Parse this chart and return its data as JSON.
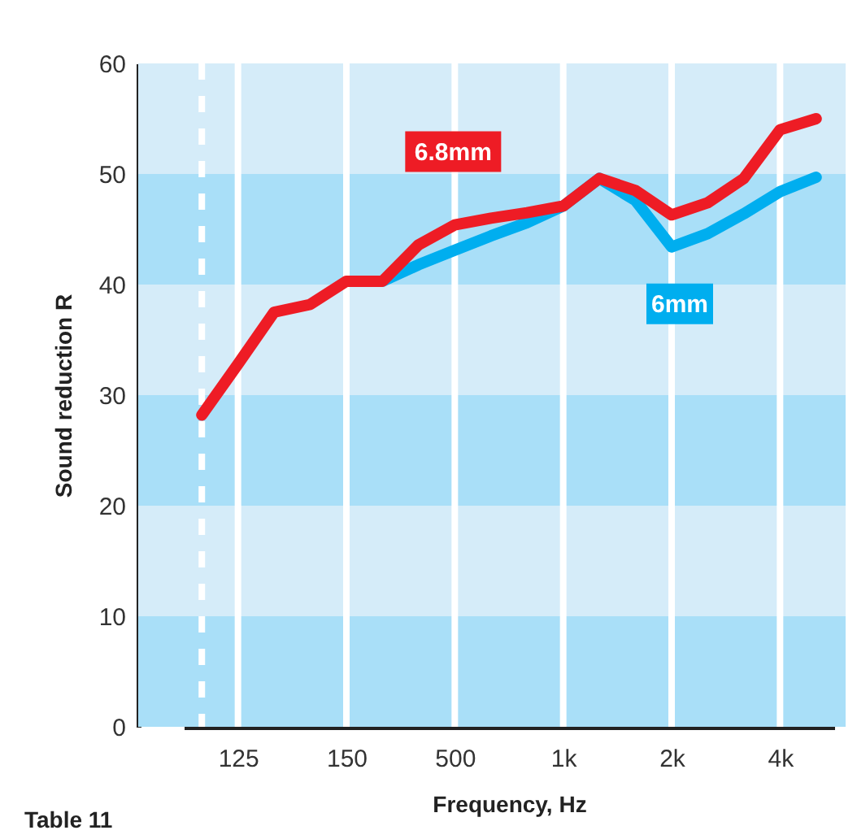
{
  "chart_data": {
    "type": "line",
    "xlabel": "Frequency, Hz",
    "ylabel": "Sound reduction R",
    "categories": [
      null,
      "125",
      null,
      null,
      "150",
      null,
      null,
      "500",
      null,
      null,
      "1k",
      null,
      null,
      "2k",
      null,
      null,
      "4k",
      null
    ],
    "ylim": [
      0,
      60
    ],
    "yticks": [
      0,
      10,
      20,
      30,
      40,
      50,
      60
    ],
    "grid": "x",
    "line_style": "solid",
    "series": [
      {
        "name": "6mm",
        "color": "#00aeef",
        "values": [
          null,
          null,
          null,
          null,
          null,
          40.3,
          41.8,
          43.1,
          44.4,
          45.6,
          47.1,
          49.6,
          47.6,
          43.4,
          44.6,
          46.4,
          48.4,
          49.7
        ]
      },
      {
        "name": "6.8mm",
        "color": "#ee1c25",
        "values": [
          28.2,
          32.8,
          37.5,
          38.2,
          40.3,
          40.3,
          43.6,
          45.4,
          46.0,
          46.5,
          47.1,
          49.6,
          48.5,
          46.3,
          47.4,
          49.6,
          54.0,
          55.0
        ]
      }
    ],
    "bands": [
      {
        "axis": "y",
        "from": 0,
        "to": 10,
        "color": "#a9dff8"
      },
      {
        "axis": "y",
        "from": 10,
        "to": 20,
        "color": "#d5ecf9"
      },
      {
        "axis": "y",
        "from": 20,
        "to": 30,
        "color": "#a9dff8"
      },
      {
        "axis": "y",
        "from": 30,
        "to": 40,
        "color": "#d5ecf9"
      },
      {
        "axis": "y",
        "from": 40,
        "to": 50,
        "color": "#a9dff8"
      },
      {
        "axis": "y",
        "from": 50,
        "to": 60,
        "color": "#d5ecf9"
      }
    ],
    "annotations": [
      "Table 11"
    ]
  }
}
